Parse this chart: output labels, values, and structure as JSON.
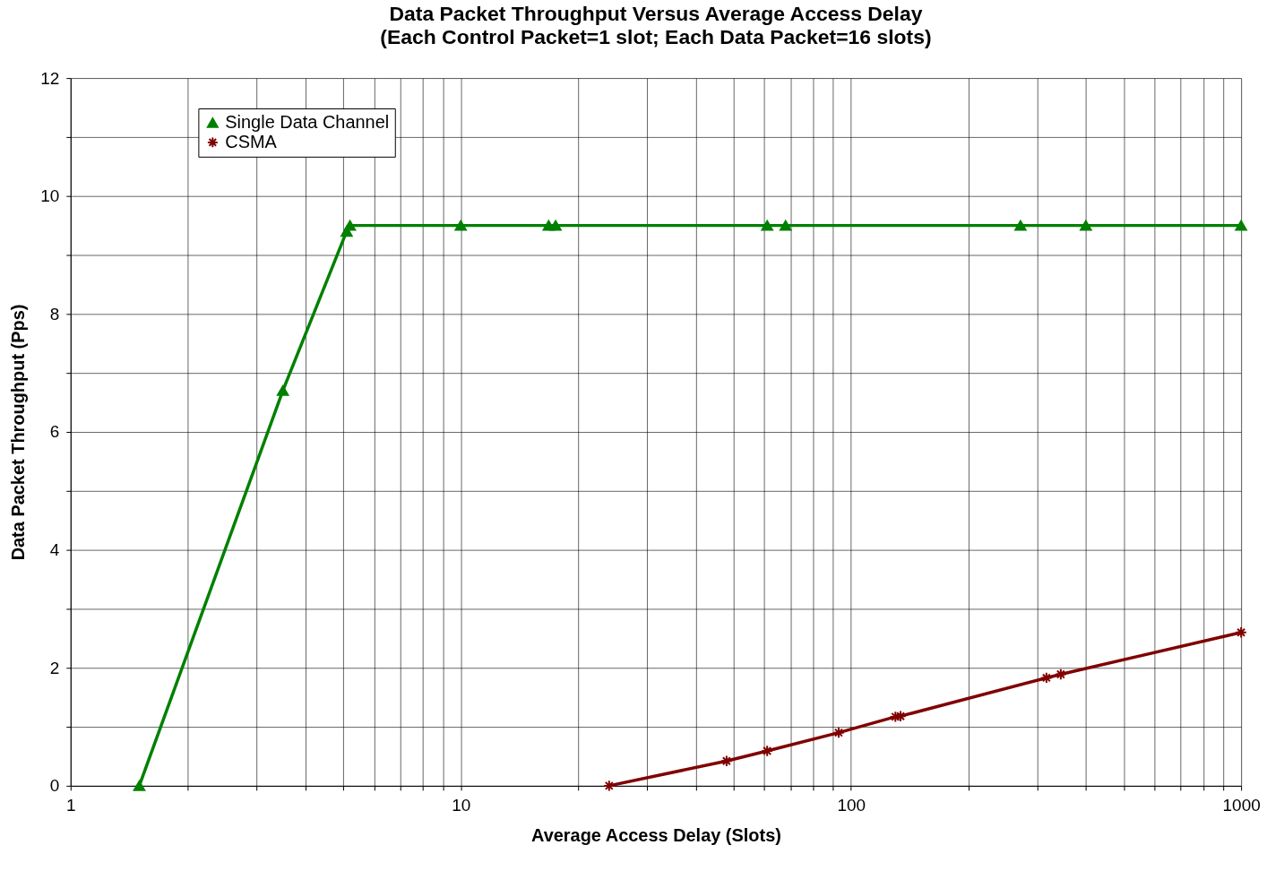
{
  "chart_data": {
    "type": "line",
    "title": "Data Packet Throughput Versus Average Access Delay",
    "subtitle": "(Each Control Packet=1 slot; Each Data Packet=16 slots)",
    "xlabel": "Average Access Delay (Slots)",
    "ylabel": "Data Packet Throughput (Pps)",
    "log": "x",
    "xlim": [
      1,
      1000
    ],
    "xticks": [
      1,
      {
        "value": 2,
        "label": null
      },
      {
        "value": 3,
        "label": null
      },
      {
        "value": 4,
        "label": null
      },
      {
        "value": 5,
        "label": null
      },
      {
        "value": 6,
        "label": null
      },
      {
        "value": 7,
        "label": null
      },
      {
        "value": 8,
        "label": null
      },
      {
        "value": 9,
        "label": null
      },
      10,
      {
        "value": 20,
        "label": null
      },
      {
        "value": 30,
        "label": null
      },
      {
        "value": 40,
        "label": null
      },
      {
        "value": 50,
        "label": null
      },
      {
        "value": 60,
        "label": null
      },
      {
        "value": 70,
        "label": null
      },
      {
        "value": 80,
        "label": null
      },
      {
        "value": 90,
        "label": null
      },
      100,
      {
        "value": 200,
        "label": null
      },
      {
        "value": 300,
        "label": null
      },
      {
        "value": 400,
        "label": null
      },
      {
        "value": 500,
        "label": null
      },
      {
        "value": 600,
        "label": null
      },
      {
        "value": 700,
        "label": null
      },
      {
        "value": 800,
        "label": null
      },
      {
        "value": 900,
        "label": null
      },
      1000
    ],
    "ylim": [
      0,
      12
    ],
    "yticks": [
      0,
      {
        "value": 1,
        "label": null
      },
      2,
      {
        "value": 3,
        "label": null
      },
      4,
      {
        "value": 5,
        "label": null
      },
      6,
      {
        "value": 7,
        "label": null
      },
      8,
      {
        "value": 9,
        "label": null
      },
      10,
      {
        "value": 11,
        "label": null
      },
      12
    ],
    "grid": true,
    "legend": "top left",
    "series": [
      {
        "name": "Single Data Channel",
        "color": "#008000",
        "marker": "triangle",
        "x": [
          1.5,
          3.5,
          5.1,
          5.2,
          10,
          16.8,
          17.5,
          61,
          68,
          272,
          400,
          1000
        ],
        "values": [
          0,
          6.7,
          9.4,
          9.5,
          9.5,
          9.5,
          9.5,
          9.5,
          9.5,
          9.5,
          9.5,
          9.5
        ]
      },
      {
        "name": "CSMA",
        "color": "#800000",
        "marker": "cross",
        "x": [
          24,
          48,
          61,
          93,
          130,
          134,
          317,
          345,
          1000
        ],
        "values": [
          0,
          0.42,
          0.59,
          0.9,
          1.17,
          1.18,
          1.83,
          1.89,
          2.6
        ]
      }
    ]
  }
}
